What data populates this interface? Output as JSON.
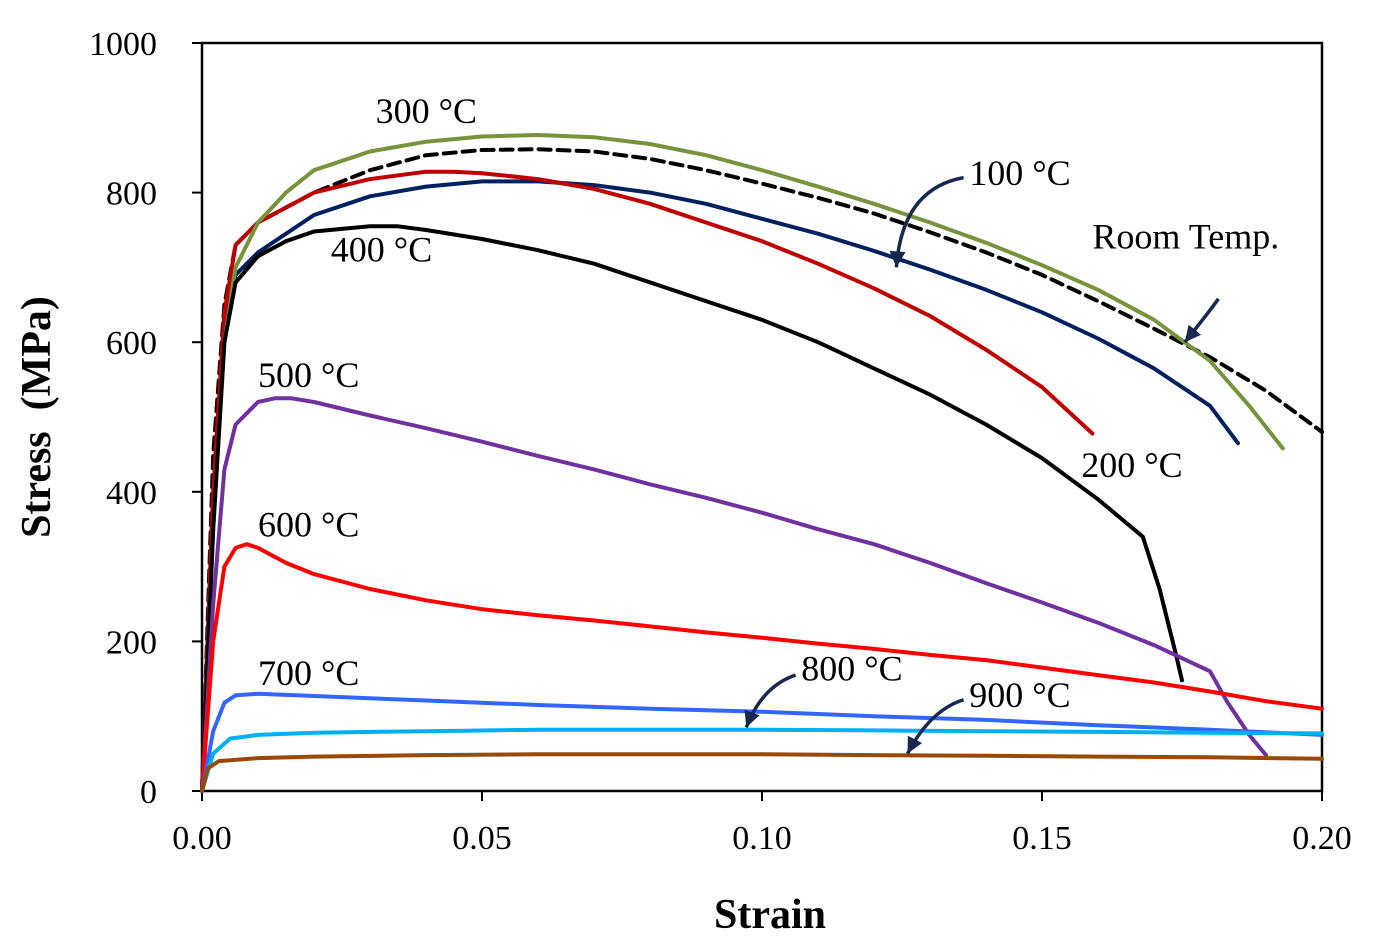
{
  "chart_data": {
    "type": "line",
    "xlabel": "Strain",
    "ylabel": "Stress  (MPa)",
    "xlim": [
      0,
      0.2
    ],
    "ylim": [
      0,
      1000
    ],
    "x_ticks": [
      "0.00",
      "0.05",
      "0.10",
      "0.15",
      "0.20"
    ],
    "y_ticks": [
      "0",
      "200",
      "400",
      "600",
      "800",
      "1000"
    ],
    "grid": false,
    "legend": "none",
    "series": [
      {
        "name": "Room Temp.",
        "color": "#000000",
        "dashed": true,
        "points": [
          [
            0,
            0
          ],
          [
            0.002,
            450
          ],
          [
            0.004,
            650
          ],
          [
            0.006,
            730
          ],
          [
            0.01,
            760
          ],
          [
            0.02,
            800
          ],
          [
            0.03,
            830
          ],
          [
            0.04,
            850
          ],
          [
            0.05,
            857
          ],
          [
            0.06,
            858
          ],
          [
            0.07,
            855
          ],
          [
            0.08,
            845
          ],
          [
            0.09,
            830
          ],
          [
            0.1,
            812
          ],
          [
            0.11,
            793
          ],
          [
            0.12,
            772
          ],
          [
            0.13,
            747
          ],
          [
            0.14,
            720
          ],
          [
            0.15,
            690
          ],
          [
            0.16,
            655
          ],
          [
            0.17,
            618
          ],
          [
            0.18,
            580
          ],
          [
            0.19,
            535
          ],
          [
            0.2,
            480
          ]
        ]
      },
      {
        "name": "100 °C",
        "color": "#002060",
        "points": [
          [
            0,
            0
          ],
          [
            0.002,
            400
          ],
          [
            0.004,
            620
          ],
          [
            0.006,
            690
          ],
          [
            0.01,
            720
          ],
          [
            0.02,
            770
          ],
          [
            0.03,
            795
          ],
          [
            0.04,
            808
          ],
          [
            0.05,
            815
          ],
          [
            0.06,
            815
          ],
          [
            0.07,
            810
          ],
          [
            0.08,
            800
          ],
          [
            0.09,
            785
          ],
          [
            0.1,
            765
          ],
          [
            0.11,
            745
          ],
          [
            0.12,
            722
          ],
          [
            0.13,
            697
          ],
          [
            0.14,
            670
          ],
          [
            0.15,
            640
          ],
          [
            0.16,
            605
          ],
          [
            0.17,
            565
          ],
          [
            0.18,
            515
          ],
          [
            0.185,
            465
          ]
        ]
      },
      {
        "name": "200 °C",
        "color": "#c00000",
        "points": [
          [
            0,
            0
          ],
          [
            0.002,
            400
          ],
          [
            0.004,
            640
          ],
          [
            0.006,
            730
          ],
          [
            0.01,
            760
          ],
          [
            0.02,
            800
          ],
          [
            0.03,
            818
          ],
          [
            0.04,
            828
          ],
          [
            0.045,
            828
          ],
          [
            0.05,
            826
          ],
          [
            0.06,
            818
          ],
          [
            0.07,
            805
          ],
          [
            0.08,
            785
          ],
          [
            0.09,
            760
          ],
          [
            0.1,
            735
          ],
          [
            0.11,
            705
          ],
          [
            0.12,
            672
          ],
          [
            0.13,
            635
          ],
          [
            0.14,
            590
          ],
          [
            0.15,
            540
          ],
          [
            0.159,
            478
          ]
        ]
      },
      {
        "name": "300 °C",
        "color": "#77933c",
        "points": [
          [
            0,
            0
          ],
          [
            0.002,
            350
          ],
          [
            0.004,
            600
          ],
          [
            0.006,
            700
          ],
          [
            0.01,
            760
          ],
          [
            0.015,
            800
          ],
          [
            0.02,
            830
          ],
          [
            0.03,
            855
          ],
          [
            0.04,
            868
          ],
          [
            0.05,
            875
          ],
          [
            0.06,
            877
          ],
          [
            0.07,
            874
          ],
          [
            0.08,
            865
          ],
          [
            0.09,
            850
          ],
          [
            0.1,
            830
          ],
          [
            0.11,
            808
          ],
          [
            0.12,
            785
          ],
          [
            0.13,
            760
          ],
          [
            0.14,
            733
          ],
          [
            0.15,
            703
          ],
          [
            0.16,
            670
          ],
          [
            0.17,
            630
          ],
          [
            0.18,
            575
          ],
          [
            0.187,
            515
          ],
          [
            0.193,
            458
          ]
        ]
      },
      {
        "name": "400 °C",
        "color": "#000000",
        "points": [
          [
            0,
            0
          ],
          [
            0.002,
            350
          ],
          [
            0.004,
            600
          ],
          [
            0.006,
            680
          ],
          [
            0.01,
            715
          ],
          [
            0.015,
            735
          ],
          [
            0.02,
            748
          ],
          [
            0.03,
            755
          ],
          [
            0.035,
            755
          ],
          [
            0.04,
            750
          ],
          [
            0.05,
            738
          ],
          [
            0.06,
            723
          ],
          [
            0.07,
            705
          ],
          [
            0.08,
            680
          ],
          [
            0.09,
            655
          ],
          [
            0.1,
            630
          ],
          [
            0.11,
            600
          ],
          [
            0.12,
            565
          ],
          [
            0.13,
            530
          ],
          [
            0.14,
            490
          ],
          [
            0.15,
            445
          ],
          [
            0.16,
            390
          ],
          [
            0.168,
            340
          ],
          [
            0.171,
            270
          ],
          [
            0.174,
            180
          ],
          [
            0.175,
            148
          ]
        ]
      },
      {
        "name": "500 °C",
        "color": "#7030a0",
        "points": [
          [
            0,
            0
          ],
          [
            0.002,
            250
          ],
          [
            0.004,
            430
          ],
          [
            0.006,
            490
          ],
          [
            0.01,
            520
          ],
          [
            0.013,
            525
          ],
          [
            0.016,
            525
          ],
          [
            0.02,
            520
          ],
          [
            0.03,
            502
          ],
          [
            0.04,
            485
          ],
          [
            0.05,
            467
          ],
          [
            0.06,
            448
          ],
          [
            0.07,
            430
          ],
          [
            0.08,
            410
          ],
          [
            0.09,
            392
          ],
          [
            0.1,
            372
          ],
          [
            0.11,
            350
          ],
          [
            0.12,
            330
          ],
          [
            0.13,
            305
          ],
          [
            0.14,
            278
          ],
          [
            0.15,
            252
          ],
          [
            0.16,
            225
          ],
          [
            0.17,
            195
          ],
          [
            0.18,
            160
          ],
          [
            0.183,
            120
          ],
          [
            0.187,
            75
          ],
          [
            0.19,
            48
          ]
        ]
      },
      {
        "name": "600 °C",
        "color": "#ff0000",
        "points": [
          [
            0,
            0
          ],
          [
            0.002,
            200
          ],
          [
            0.004,
            300
          ],
          [
            0.006,
            325
          ],
          [
            0.008,
            330
          ],
          [
            0.01,
            325
          ],
          [
            0.015,
            305
          ],
          [
            0.02,
            290
          ],
          [
            0.03,
            270
          ],
          [
            0.04,
            255
          ],
          [
            0.05,
            243
          ],
          [
            0.06,
            235
          ],
          [
            0.07,
            228
          ],
          [
            0.08,
            220
          ],
          [
            0.09,
            212
          ],
          [
            0.1,
            205
          ],
          [
            0.11,
            197
          ],
          [
            0.12,
            190
          ],
          [
            0.13,
            182
          ],
          [
            0.14,
            175
          ],
          [
            0.15,
            165
          ],
          [
            0.16,
            155
          ],
          [
            0.17,
            145
          ],
          [
            0.18,
            133
          ],
          [
            0.19,
            120
          ],
          [
            0.2,
            110
          ]
        ]
      },
      {
        "name": "700 °C",
        "color": "#3366ff",
        "points": [
          [
            0,
            0
          ],
          [
            0.002,
            80
          ],
          [
            0.004,
            118
          ],
          [
            0.006,
            128
          ],
          [
            0.01,
            130
          ],
          [
            0.02,
            127
          ],
          [
            0.04,
            121
          ],
          [
            0.06,
            115
          ],
          [
            0.08,
            110
          ],
          [
            0.1,
            106
          ],
          [
            0.12,
            100
          ],
          [
            0.14,
            95
          ],
          [
            0.16,
            88
          ],
          [
            0.18,
            82
          ],
          [
            0.2,
            75
          ]
        ]
      },
      {
        "name": "800 °C",
        "color": "#00b0f0",
        "points": [
          [
            0,
            0
          ],
          [
            0.002,
            50
          ],
          [
            0.005,
            70
          ],
          [
            0.01,
            75
          ],
          [
            0.02,
            78
          ],
          [
            0.04,
            80
          ],
          [
            0.06,
            82
          ],
          [
            0.08,
            82
          ],
          [
            0.1,
            82
          ],
          [
            0.12,
            81
          ],
          [
            0.14,
            80
          ],
          [
            0.16,
            79
          ],
          [
            0.18,
            78
          ],
          [
            0.2,
            77
          ]
        ]
      },
      {
        "name": "900 °C",
        "color": "#984807",
        "points": [
          [
            0,
            0
          ],
          [
            0.001,
            30
          ],
          [
            0.003,
            40
          ],
          [
            0.01,
            44
          ],
          [
            0.02,
            46
          ],
          [
            0.04,
            48
          ],
          [
            0.06,
            49
          ],
          [
            0.08,
            49
          ],
          [
            0.1,
            49
          ],
          [
            0.12,
            48
          ],
          [
            0.14,
            47
          ],
          [
            0.16,
            46
          ],
          [
            0.18,
            45
          ],
          [
            0.2,
            43
          ]
        ]
      }
    ],
    "annotations": [
      {
        "text": "300 °C",
        "x": 0.031,
        "y": 893
      },
      {
        "text": "100 °C",
        "x": 0.137,
        "y": 810
      },
      {
        "text": "Room Temp.",
        "x": 0.159,
        "y": 725
      },
      {
        "text": "400 °C",
        "x": 0.023,
        "y": 708
      },
      {
        "text": "500 °C",
        "x": 0.01,
        "y": 540
      },
      {
        "text": "200 °C",
        "x": 0.157,
        "y": 420
      },
      {
        "text": "600 °C",
        "x": 0.01,
        "y": 340
      },
      {
        "text": "700 °C",
        "x": 0.01,
        "y": 142
      },
      {
        "text": "800 °C",
        "x": 0.107,
        "y": 148
      },
      {
        "text": "900 °C",
        "x": 0.137,
        "y": 112
      }
    ],
    "arrows": [
      {
        "points": [
          [
            0.136,
            820
          ],
          [
            0.125,
            805
          ],
          [
            0.124,
            700
          ]
        ]
      },
      {
        "points": [
          [
            0.1815,
            658
          ],
          [
            0.1798,
            640
          ],
          [
            0.1755,
            600
          ]
        ]
      },
      {
        "points": [
          [
            0.106,
            155
          ],
          [
            0.1,
            140
          ],
          [
            0.0972,
            85
          ]
        ]
      },
      {
        "points": [
          [
            0.136,
            122
          ],
          [
            0.13,
            108
          ],
          [
            0.126,
            50
          ]
        ]
      }
    ]
  }
}
